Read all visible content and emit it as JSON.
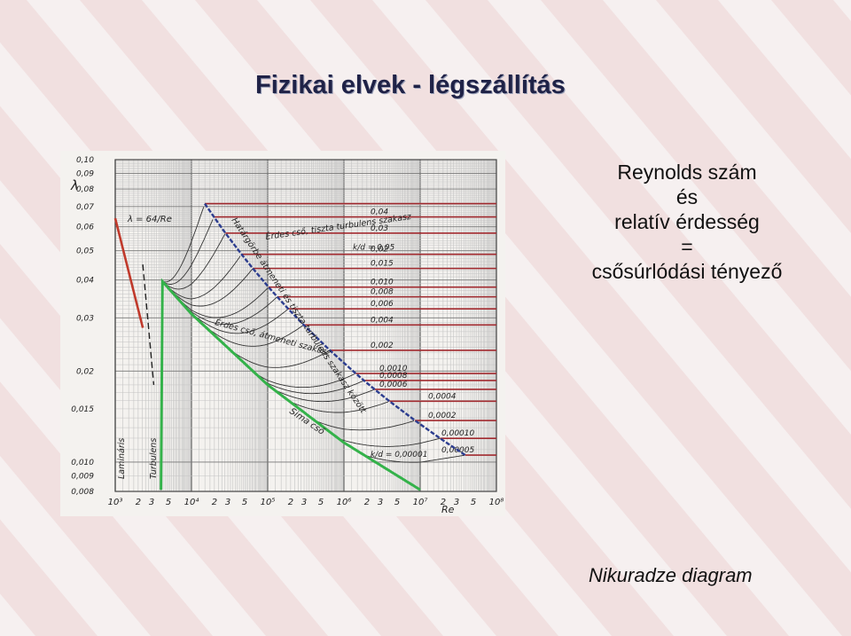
{
  "slide": {
    "title": "Fizikai elvek - légszállítás",
    "right_lines": [
      "Reynolds szám",
      "és",
      "relatív érdesség",
      "=",
      "csősúrlódási tényező"
    ],
    "caption": "Nikuradze diagram"
  },
  "colors": {
    "background": "#f6f0f0",
    "stripe": "#e9c3c3",
    "title": "#1f2247",
    "laminar": "#c0392b",
    "smooth": "#34b24a",
    "rough_limit": "#2c3d8f",
    "rough_lines": "#a12a2f"
  },
  "chart_data": {
    "type": "line",
    "xscale": "log",
    "yscale": "log",
    "xlim": [
      1000,
      100000000
    ],
    "ylim": [
      0.008,
      0.1
    ],
    "grid": true,
    "xlabel": "Re",
    "ylabel": "λ",
    "x_ticks": [
      {
        "v": 1000,
        "l": "10³"
      },
      {
        "v": 2000,
        "l": "2"
      },
      {
        "v": 3000,
        "l": "3"
      },
      {
        "v": 5000,
        "l": "5"
      },
      {
        "v": 10000,
        "l": "10⁴"
      },
      {
        "v": 20000,
        "l": "2"
      },
      {
        "v": 30000,
        "l": "3"
      },
      {
        "v": 50000,
        "l": "5"
      },
      {
        "v": 100000,
        "l": "10⁵"
      },
      {
        "v": 200000,
        "l": "2"
      },
      {
        "v": 300000,
        "l": "3"
      },
      {
        "v": 500000,
        "l": "5"
      },
      {
        "v": 1000000,
        "l": "10⁶"
      },
      {
        "v": 2000000,
        "l": "2"
      },
      {
        "v": 3000000,
        "l": "3"
      },
      {
        "v": 5000000,
        "l": "5"
      },
      {
        "v": 10000000,
        "l": "10⁷"
      },
      {
        "v": 20000000,
        "l": "2"
      },
      {
        "v": 30000000,
        "l": "3"
      },
      {
        "v": 50000000,
        "l": "5"
      },
      {
        "v": 100000000,
        "l": "10⁸"
      }
    ],
    "y_ticks": [
      {
        "v": 0.1,
        "l": "0,10"
      },
      {
        "v": 0.09,
        "l": "0,09"
      },
      {
        "v": 0.08,
        "l": "0,08"
      },
      {
        "v": 0.07,
        "l": "0,07"
      },
      {
        "v": 0.06,
        "l": "0,06"
      },
      {
        "v": 0.05,
        "l": "0,05"
      },
      {
        "v": 0.04,
        "l": "0,04"
      },
      {
        "v": 0.03,
        "l": "0,03"
      },
      {
        "v": 0.02,
        "l": "0,02"
      },
      {
        "v": 0.015,
        "l": "0,015"
      },
      {
        "v": 0.01,
        "l": "0,010"
      },
      {
        "v": 0.009,
        "l": "0,009"
      },
      {
        "v": 0.008,
        "l": "0,008"
      }
    ],
    "roughness_values": [
      0.05,
      0.04,
      0.03,
      0.02,
      0.015,
      0.01,
      0.008,
      0.006,
      0.004,
      0.002,
      0.001,
      0.0008,
      0.0006,
      0.0004,
      0.0002,
      0.0001,
      5e-05,
      1e-05
    ],
    "roughness_labels": [
      "0,05",
      "0,04",
      "0,03",
      "0,02",
      "0,015",
      "0,010",
      "0,008",
      "0,006",
      "0,004",
      "0,002",
      "0,0010",
      "0,0008",
      "0,0006",
      "0,0004",
      "0,0002",
      "0,00010",
      "0,00005",
      "0,00001"
    ],
    "series": [
      {
        "name": "λ = 64/Re",
        "x": [
          1000,
          2300
        ],
        "y": [
          0.064,
          0.0278
        ]
      },
      {
        "name": "Sima cső",
        "x": [
          4000,
          10000,
          100000,
          1000000,
          10000000
        ],
        "y": [
          0.04,
          0.0309,
          0.018,
          0.0116,
          0.0081
        ]
      }
    ],
    "annotations": {
      "roughness_header": "k/d = 0,05",
      "laminar_formula": "λ = 64/Re",
      "rough_zone": "Érdes cső, tiszta turbulens szakasz",
      "transition_boundary": "Határgörbe átmeneti és tiszta turbulens szakasz között",
      "transition_zone": "Érdes cső, átmeneti szakasz",
      "smooth": "Sima cső",
      "laminar": "Lamináris",
      "turbulent": "Turbulens",
      "k_d_low": "k/d = 0,00001"
    }
  }
}
